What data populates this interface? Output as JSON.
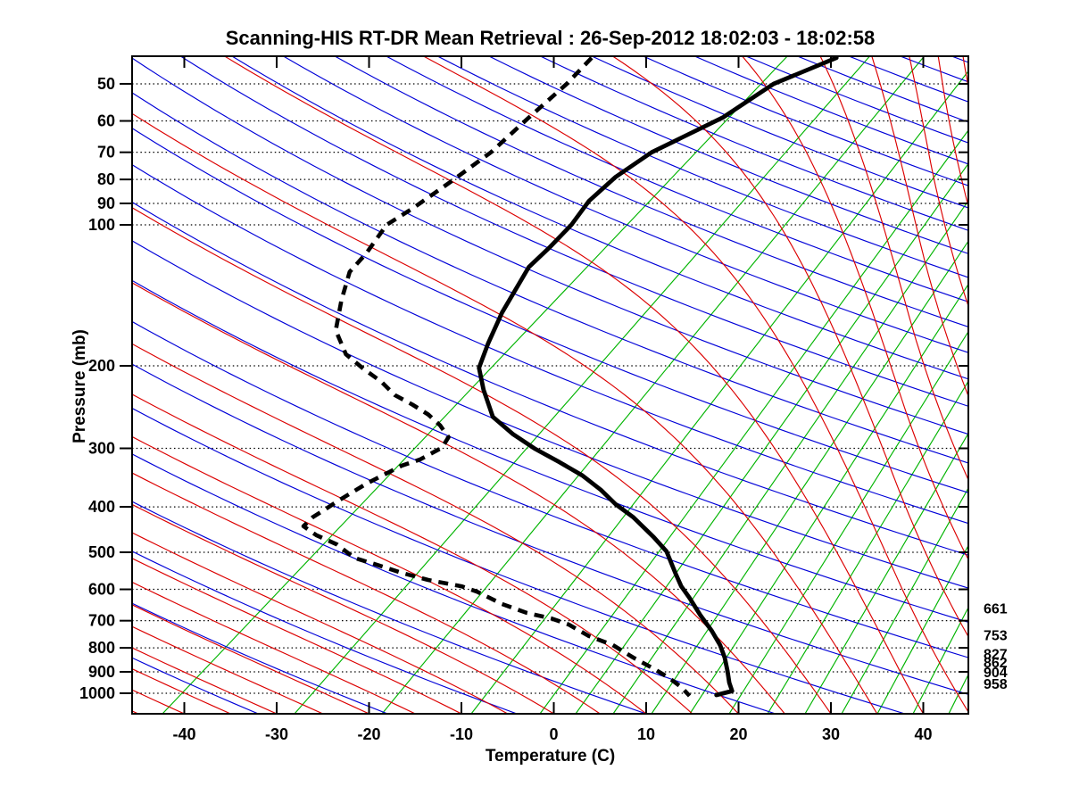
{
  "title": "Scanning-HIS RT-DR Mean Retrieval : 26-Sep-2012 18:02:03 - 18:02:58",
  "axes": {
    "x": {
      "label": "Temperature (C)",
      "ticks": [
        -40,
        -30,
        -20,
        -10,
        0,
        10,
        20,
        30,
        40
      ]
    },
    "y": {
      "label": "Pressure (mb)",
      "ticks": [
        50,
        60,
        70,
        80,
        90,
        100,
        200,
        300,
        400,
        500,
        600,
        700,
        800,
        900,
        1000
      ]
    }
  },
  "right_pressure_labels": [
    661,
    753,
    827,
    862,
    904,
    958
  ],
  "colors": {
    "isotherm_green": "#00B400",
    "dry_adiabat_blue": "#0000D8",
    "moist_adiabat_red": "#DC0000",
    "profile_black": "#000000",
    "grid_black": "#000000"
  },
  "background": {
    "skew": 0.75,
    "green_bottom_crossings": [
      182,
      330,
      428,
      528,
      605,
      645,
      687,
      730,
      773,
      817,
      860,
      902,
      943,
      983,
      1023,
      1063
    ],
    "green_slope_start": 0.95,
    "green_slope_end": 0.5,
    "dry_adiabats": {
      "t0_min": -60,
      "t0_max": 400,
      "t0_step": 14
    },
    "moist_adiabats": {
      "t0_min": -70,
      "t0_max": 120,
      "t0_step": 5
    }
  },
  "chart_data": {
    "type": "line",
    "diagram": "skew-t log-p thermodynamic sounding",
    "title": "Scanning-HIS RT-DR Mean Retrieval : 26-Sep-2012 18:02:03 - 18:02:58",
    "xlabel": "Temperature (C)",
    "ylabel": "Pressure (mb)",
    "x_range": [
      -45,
      45
    ],
    "y_range_mb": [
      44,
      1106
    ],
    "y_scale": "log",
    "grid": "dotted horizontal isobars at labeled pressures",
    "legend_position": "none",
    "series": [
      {
        "name": "temperature",
        "line": "solid",
        "color": "#000000",
        "points_p_t": [
          [
            44,
            30.6
          ],
          [
            50,
            23.8
          ],
          [
            59,
            18.3
          ],
          [
            70,
            10.6
          ],
          [
            79,
            6.7
          ],
          [
            89,
            3.8
          ],
          [
            100,
            1.9
          ],
          [
            112,
            -0.5
          ],
          [
            123,
            -2.7
          ],
          [
            154,
            -5.6
          ],
          [
            179,
            -7.1
          ],
          [
            202,
            -8.1
          ],
          [
            225,
            -7.6
          ],
          [
            257,
            -6.6
          ],
          [
            280,
            -4.4
          ],
          [
            301,
            -2.0
          ],
          [
            321,
            0.6
          ],
          [
            343,
            3.1
          ],
          [
            368,
            5.1
          ],
          [
            395,
            6.7
          ],
          [
            421,
            8.6
          ],
          [
            464,
            10.8
          ],
          [
            498,
            12.2
          ],
          [
            556,
            13.2
          ],
          [
            591,
            13.8
          ],
          [
            626,
            14.7
          ],
          [
            683,
            15.9
          ],
          [
            736,
            17.1
          ],
          [
            789,
            18.0
          ],
          [
            839,
            18.5
          ],
          [
            896,
            18.8
          ],
          [
            949,
            19.0
          ],
          [
            989,
            19.3
          ],
          [
            1009,
            17.6
          ]
        ]
      },
      {
        "name": "dewpoint",
        "line": "dashed",
        "color": "#000000",
        "points_p_t": [
          [
            44,
            4.1
          ],
          [
            50,
            1.4
          ],
          [
            59,
            -2.7
          ],
          [
            70,
            -6.8
          ],
          [
            81,
            -11.2
          ],
          [
            92,
            -15.2
          ],
          [
            100,
            -18.1
          ],
          [
            115,
            -20.3
          ],
          [
            126,
            -22.1
          ],
          [
            145,
            -23.0
          ],
          [
            168,
            -23.6
          ],
          [
            189,
            -22.5
          ],
          [
            203,
            -20.6
          ],
          [
            216,
            -18.7
          ],
          [
            231,
            -17.2
          ],
          [
            242,
            -15.3
          ],
          [
            254,
            -13.6
          ],
          [
            268,
            -12.3
          ],
          [
            284,
            -11.4
          ],
          [
            299,
            -12.1
          ],
          [
            317,
            -14.5
          ],
          [
            327,
            -16.5
          ],
          [
            357,
            -20.3
          ],
          [
            390,
            -23.5
          ],
          [
            402,
            -24.5
          ],
          [
            421,
            -26.1
          ],
          [
            440,
            -27.1
          ],
          [
            460,
            -25.7
          ],
          [
            481,
            -23.5
          ],
          [
            514,
            -21.6
          ],
          [
            530,
            -19.4
          ],
          [
            553,
            -16.5
          ],
          [
            573,
            -13.6
          ],
          [
            591,
            -10.0
          ],
          [
            607,
            -8.3
          ],
          [
            645,
            -5.6
          ],
          [
            674,
            -2.9
          ],
          [
            692,
            -0.3
          ],
          [
            713,
            1.6
          ],
          [
            755,
            3.8
          ],
          [
            789,
            6.4
          ],
          [
            839,
            8.6
          ],
          [
            888,
            10.9
          ],
          [
            928,
            12.5
          ],
          [
            970,
            13.8
          ],
          [
            1013,
            14.7
          ]
        ]
      }
    ]
  }
}
